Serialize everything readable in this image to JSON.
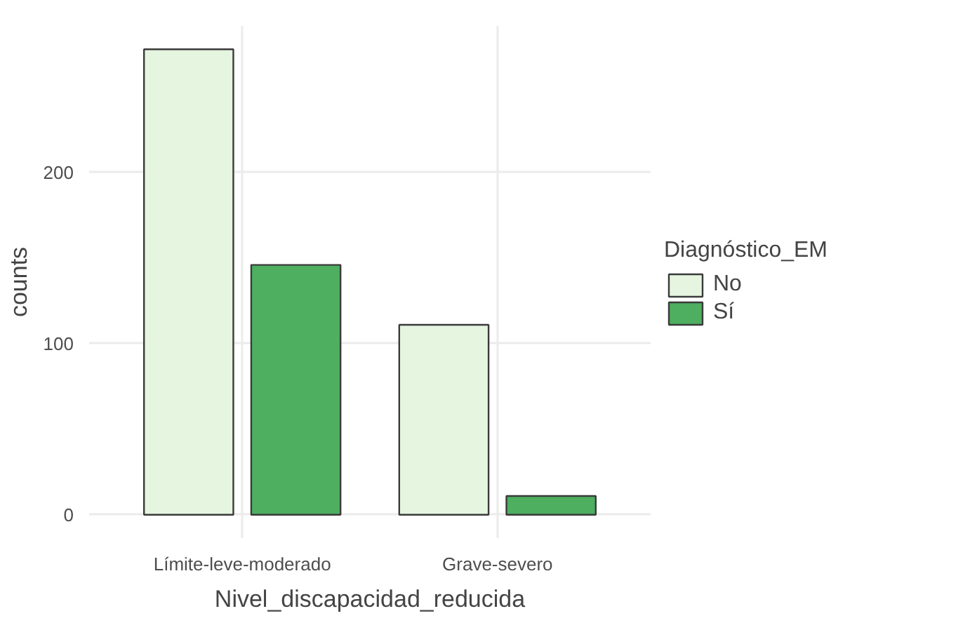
{
  "chart_data": {
    "type": "bar",
    "xlabel": "Nivel_discapacidad_reducida",
    "ylabel": "counts",
    "legend_title": "Diagnóstico_EM",
    "categories": [
      "Límite-leve-moderado",
      "Grave-severo"
    ],
    "series": [
      {
        "name": "No",
        "color": "#e5f5e0",
        "values": [
          272,
          111
        ]
      },
      {
        "name": "Sí",
        "color": "#4daf5f",
        "values": [
          146,
          11
        ]
      }
    ],
    "ylim": [
      -13.6,
      285.6
    ],
    "yticks": [
      0,
      100,
      200
    ],
    "grid": true,
    "legend": "right"
  }
}
